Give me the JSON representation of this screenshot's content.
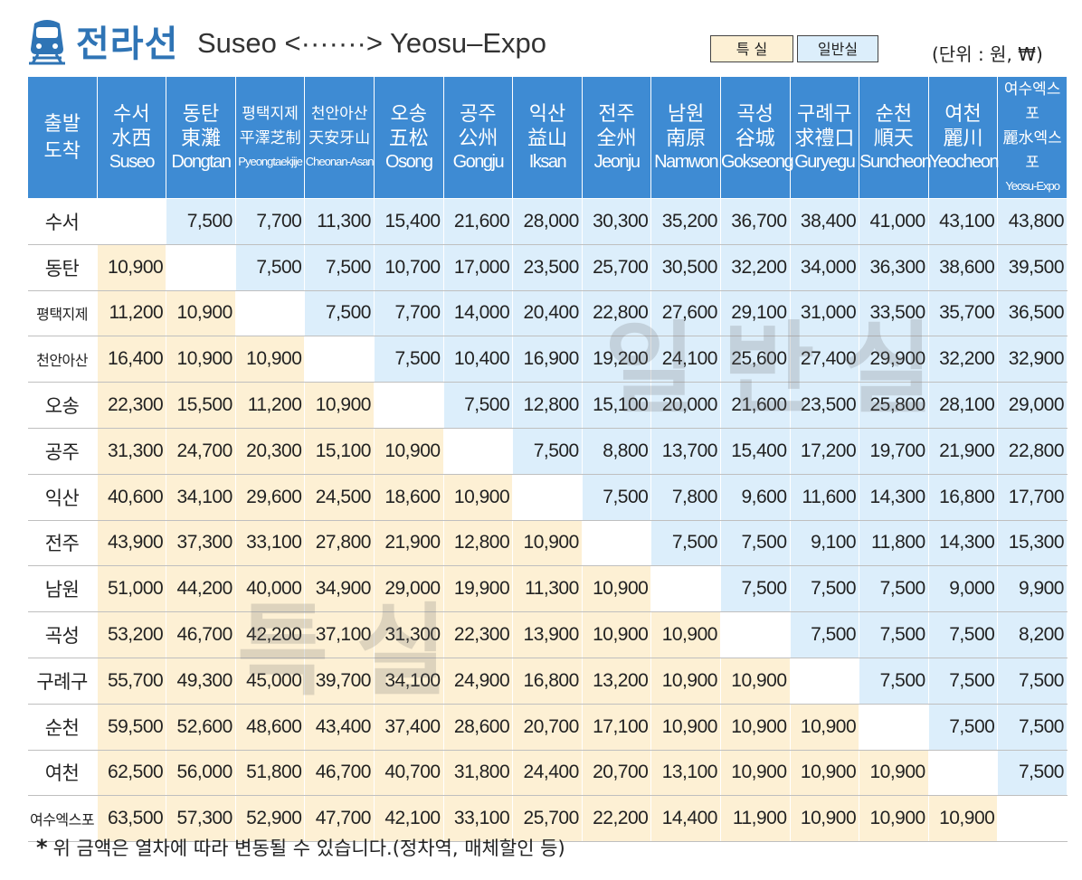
{
  "header": {
    "line_name": "전라선",
    "route_text": "Suseo <·······> Yeosu–Expo",
    "legend_first": "특 실",
    "legend_standard": "일반실",
    "unit": "(단위 : 원, ₩)"
  },
  "table": {
    "corner_top": "출발",
    "corner_bottom": "도착",
    "stations": [
      {
        "ko": "수서",
        "hanja": "水西",
        "en": "Suseo"
      },
      {
        "ko": "동탄",
        "hanja": "東灘",
        "en": "Dongtan"
      },
      {
        "ko": "평택지제",
        "hanja": "平澤芝制",
        "en": "Pyeongtaekjije"
      },
      {
        "ko": "천안아산",
        "hanja": "天安牙山",
        "en": "Cheonan-Asan"
      },
      {
        "ko": "오송",
        "hanja": "五松",
        "en": "Osong"
      },
      {
        "ko": "공주",
        "hanja": "公州",
        "en": "Gongju"
      },
      {
        "ko": "익산",
        "hanja": "益山",
        "en": "Iksan"
      },
      {
        "ko": "전주",
        "hanja": "全州",
        "en": "Jeonju"
      },
      {
        "ko": "남원",
        "hanja": "南原",
        "en": "Namwon"
      },
      {
        "ko": "곡성",
        "hanja": "谷城",
        "en": "Gokseong"
      },
      {
        "ko": "구례구",
        "hanja": "求禮口",
        "en": "Guryegu"
      },
      {
        "ko": "순천",
        "hanja": "順天",
        "en": "Suncheon"
      },
      {
        "ko": "여천",
        "hanja": "麗川",
        "en": "Yeocheon"
      },
      {
        "ko": "여수엑스포",
        "hanja": "麗水엑스포",
        "en": "Yeosu-Expo"
      }
    ],
    "rows": [
      {
        "origin": "수서",
        "fares": [
          "",
          "7,500",
          "7,700",
          "11,300",
          "15,400",
          "21,600",
          "28,000",
          "30,300",
          "35,200",
          "36,700",
          "38,400",
          "41,000",
          "43,100",
          "43,800"
        ]
      },
      {
        "origin": "동탄",
        "fares": [
          "10,900",
          "",
          "7,500",
          "7,500",
          "10,700",
          "17,000",
          "23,500",
          "25,700",
          "30,500",
          "32,200",
          "34,000",
          "36,300",
          "38,600",
          "39,500"
        ]
      },
      {
        "origin": "평택지제",
        "fares": [
          "11,200",
          "10,900",
          "",
          "7,500",
          "7,700",
          "14,000",
          "20,400",
          "22,800",
          "27,600",
          "29,100",
          "31,000",
          "33,500",
          "35,700",
          "36,500"
        ]
      },
      {
        "origin": "천안아산",
        "fares": [
          "16,400",
          "10,900",
          "10,900",
          "",
          "7,500",
          "10,400",
          "16,900",
          "19,200",
          "24,100",
          "25,600",
          "27,400",
          "29,900",
          "32,200",
          "32,900"
        ]
      },
      {
        "origin": "오송",
        "fares": [
          "22,300",
          "15,500",
          "11,200",
          "10,900",
          "",
          "7,500",
          "12,800",
          "15,100",
          "20,000",
          "21,600",
          "23,500",
          "25,800",
          "28,100",
          "29,000"
        ]
      },
      {
        "origin": "공주",
        "fares": [
          "31,300",
          "24,700",
          "20,300",
          "15,100",
          "10,900",
          "",
          "7,500",
          "8,800",
          "13,700",
          "15,400",
          "17,200",
          "19,700",
          "21,900",
          "22,800"
        ]
      },
      {
        "origin": "익산",
        "fares": [
          "40,600",
          "34,100",
          "29,600",
          "24,500",
          "18,600",
          "10,900",
          "",
          "7,500",
          "7,800",
          "9,600",
          "11,600",
          "14,300",
          "16,800",
          "17,700"
        ]
      },
      {
        "origin": "전주",
        "fares": [
          "43,900",
          "37,300",
          "33,100",
          "27,800",
          "21,900",
          "12,800",
          "10,900",
          "",
          "7,500",
          "7,500",
          "9,100",
          "11,800",
          "14,300",
          "15,300"
        ]
      },
      {
        "origin": "남원",
        "fares": [
          "51,000",
          "44,200",
          "40,000",
          "34,900",
          "29,000",
          "19,900",
          "11,300",
          "10,900",
          "",
          "7,500",
          "7,500",
          "7,500",
          "9,000",
          "9,900"
        ]
      },
      {
        "origin": "곡성",
        "fares": [
          "53,200",
          "46,700",
          "42,200",
          "37,100",
          "31,300",
          "22,300",
          "13,900",
          "10,900",
          "10,900",
          "",
          "7,500",
          "7,500",
          "7,500",
          "8,200"
        ]
      },
      {
        "origin": "구례구",
        "fares": [
          "55,700",
          "49,300",
          "45,000",
          "39,700",
          "34,100",
          "24,900",
          "16,800",
          "13,200",
          "10,900",
          "10,900",
          "",
          "7,500",
          "7,500",
          "7,500"
        ]
      },
      {
        "origin": "순천",
        "fares": [
          "59,500",
          "52,600",
          "48,600",
          "43,400",
          "37,400",
          "28,600",
          "20,700",
          "17,100",
          "10,900",
          "10,900",
          "10,900",
          "",
          "7,500",
          "7,500"
        ]
      },
      {
        "origin": "여천",
        "fares": [
          "62,500",
          "56,000",
          "51,800",
          "46,700",
          "40,700",
          "31,800",
          "24,400",
          "20,700",
          "13,100",
          "10,900",
          "10,900",
          "10,900",
          "",
          "7,500"
        ]
      },
      {
        "origin": "여수엑스포",
        "fares": [
          "63,500",
          "57,300",
          "52,900",
          "47,700",
          "42,100",
          "33,100",
          "25,700",
          "22,200",
          "14,400",
          "11,900",
          "10,900",
          "10,900",
          "10,900",
          ""
        ]
      }
    ]
  },
  "watermarks": {
    "standard": "일반실",
    "first": "특실"
  },
  "footnote": {
    "mark": "*",
    "text": "위 금액은 열차에 따라 변동될 수 있습니다.(정차역, 매체할인 등)"
  },
  "colors": {
    "header_blue": "#3e8bd3",
    "first_class_bg": "#fdf0d4",
    "standard_bg": "#dceefb",
    "title_blue": "#2f74b5"
  },
  "icons": [
    "train-icon"
  ]
}
